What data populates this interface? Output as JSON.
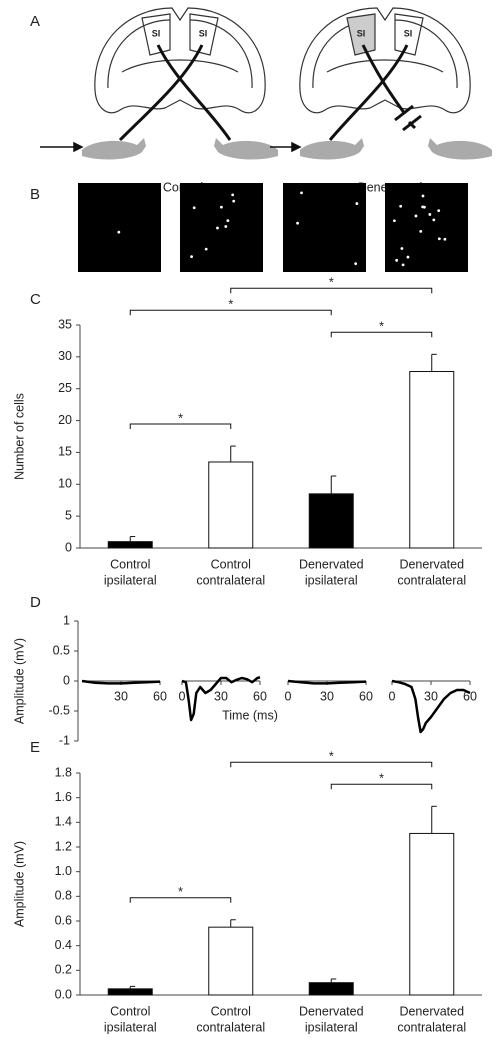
{
  "panel_labels": [
    "A",
    "B",
    "C",
    "D",
    "E"
  ],
  "diagram": {
    "control": {
      "regions": [
        "SI",
        "SI"
      ],
      "label": "Control"
    },
    "denervated": {
      "regions": [
        "SI",
        "SI"
      ],
      "label": "Denervated"
    }
  },
  "chart_data": [
    {
      "type": "bar",
      "ylabel": "Number of cells",
      "categories": [
        [
          "Control",
          "ipsilateral"
        ],
        [
          "Control",
          "contralateral"
        ],
        [
          "Denervated",
          "ipsilateral"
        ],
        [
          "Denervated",
          "contralateral"
        ]
      ],
      "values": [
        1.0,
        13.5,
        8.5,
        27.7
      ],
      "errors": [
        0.8,
        2.5,
        2.8,
        2.7
      ],
      "colors": [
        "#000000",
        "#ffffff",
        "#000000",
        "#ffffff"
      ],
      "ylim": [
        0,
        35
      ],
      "yticks": [
        0,
        5,
        10,
        15,
        20,
        25,
        30,
        35
      ],
      "significance": [
        {
          "pair": [
            0,
            1
          ],
          "label": "*"
        },
        {
          "pair": [
            0,
            2
          ],
          "label": "*"
        },
        {
          "pair": [
            1,
            3
          ],
          "label": "*"
        },
        {
          "pair": [
            2,
            3
          ],
          "label": "*"
        }
      ]
    },
    {
      "type": "line",
      "ylabel": "Amplitude (mV)",
      "xlabel": "Time (ms)",
      "color": "#000000",
      "ylim": [
        -1,
        1
      ],
      "yticks": [
        -1,
        -0.5,
        0,
        0.5,
        1
      ],
      "xlim": [
        0,
        60
      ],
      "series": [
        {
          "x": [
            0,
            10,
            20,
            30,
            40,
            50,
            60
          ],
          "values": [
            0,
            -0.03,
            -0.04,
            -0.04,
            -0.03,
            -0.02,
            -0.01
          ],
          "xticks": [
            30,
            60
          ]
        },
        {
          "x": [
            0,
            3,
            5,
            7,
            9,
            11,
            14,
            18,
            22,
            26,
            30,
            34,
            38,
            42,
            46,
            50,
            54,
            58,
            60
          ],
          "values": [
            0,
            -0.02,
            -0.3,
            -0.65,
            -0.55,
            -0.2,
            -0.1,
            -0.2,
            -0.15,
            -0.05,
            0.05,
            0.05,
            -0.02,
            0.02,
            0.05,
            0.03,
            -0.02,
            0.05,
            0.06
          ],
          "xticks": [
            0,
            30,
            60
          ]
        },
        {
          "x": [
            0,
            10,
            20,
            30,
            40,
            50,
            60
          ],
          "values": [
            0,
            -0.02,
            -0.04,
            -0.04,
            -0.03,
            -0.02,
            -0.01
          ],
          "xticks": [
            0,
            30,
            60
          ]
        },
        {
          "x": [
            0,
            5,
            10,
            15,
            18,
            20,
            22,
            24,
            26,
            30,
            35,
            40,
            45,
            50,
            55,
            60
          ],
          "values": [
            0,
            -0.02,
            -0.05,
            -0.1,
            -0.3,
            -0.6,
            -0.85,
            -0.8,
            -0.7,
            -0.6,
            -0.45,
            -0.3,
            -0.2,
            -0.15,
            -0.15,
            -0.2
          ],
          "xticks": [
            0,
            30,
            60
          ]
        }
      ]
    },
    {
      "type": "bar",
      "ylabel": "Amplitude (mV)",
      "categories": [
        [
          "Control",
          "ipsilateral"
        ],
        [
          "Control",
          "contralateral"
        ],
        [
          "Denervated",
          "ipsilateral"
        ],
        [
          "Denervated",
          "contralateral"
        ]
      ],
      "values": [
        0.05,
        0.55,
        0.1,
        1.31
      ],
      "errors": [
        0.02,
        0.06,
        0.03,
        0.22
      ],
      "colors": [
        "#000000",
        "#ffffff",
        "#000000",
        "#ffffff"
      ],
      "ylim": [
        0,
        1.8
      ],
      "yticks": [
        {
          "value": 0,
          "label": "0.0"
        },
        0.2,
        0.4,
        0.6,
        0.8,
        {
          "value": 1,
          "label": "1.0"
        },
        1.2,
        1.4,
        1.6,
        1.8
      ],
      "significance": [
        {
          "pair": [
            0,
            1
          ],
          "label": "*"
        },
        {
          "pair": [
            1,
            3
          ],
          "label": "*"
        },
        {
          "pair": [
            2,
            3
          ],
          "label": "*"
        }
      ]
    }
  ]
}
